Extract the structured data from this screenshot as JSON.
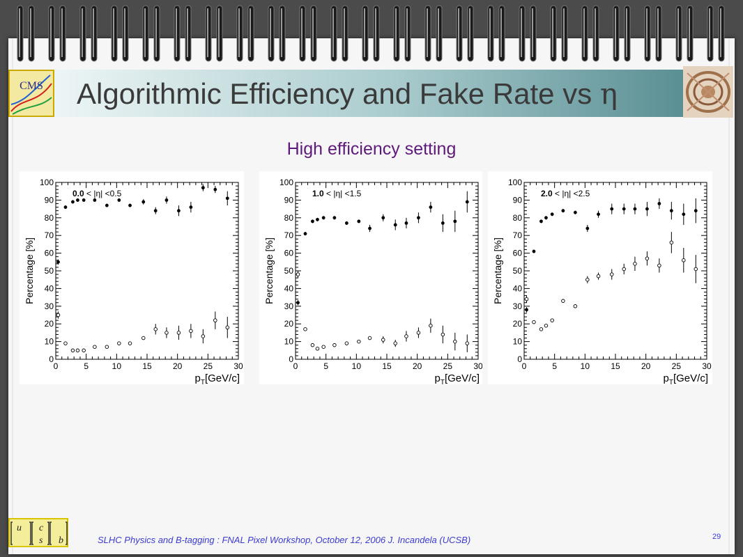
{
  "slide": {
    "title_text": "Algorithmic Efficiency and Fake Rate vs ",
    "title_symbol": "η",
    "subtitle": "High efficiency setting",
    "footer": "SLHC Physics and B-tagging : FNAL Pixel Workshop, October 12, 2006   J. Incandela (UCSB)",
    "page_number": "29",
    "logo_left_text": "CMS",
    "logo_quarks": [
      "u",
      "c",
      "s",
      "b"
    ]
  },
  "chart_data": [
    {
      "type": "scatter",
      "region_label": {
        "lo": "0.0",
        "mid": "< |η| <",
        "hi": "0.5"
      },
      "xlabel_main": "p",
      "xlabel_sub": "T",
      "xlabel_rest": "[GeV/c]",
      "ylabel": "Percentage [%]",
      "xlim": [
        0,
        30
      ],
      "ylim": [
        0,
        100
      ],
      "x_ticks": [
        "0",
        "5",
        "10",
        "15",
        "20",
        "25",
        "30"
      ],
      "y_ticks": [
        "0",
        "10",
        "20",
        "30",
        "40",
        "50",
        "60",
        "70",
        "80",
        "90",
        "100"
      ],
      "series": [
        {
          "marker": "filled",
          "points": [
            [
              0.4,
              55,
              1.5
            ],
            [
              1.6,
              86,
              1
            ],
            [
              2.8,
              89,
              1
            ],
            [
              3.6,
              90,
              1
            ],
            [
              4.6,
              90,
              1
            ],
            [
              6.4,
              90,
              1
            ],
            [
              8.4,
              87,
              1
            ],
            [
              10.4,
              90,
              1
            ],
            [
              12.2,
              87,
              1
            ],
            [
              14.4,
              89,
              1.5
            ],
            [
              16.4,
              84,
              2
            ],
            [
              18.2,
              90,
              2
            ],
            [
              20.2,
              84,
              3
            ],
            [
              22.2,
              86,
              3
            ],
            [
              24.2,
              97,
              2
            ],
            [
              26.2,
              96,
              2
            ],
            [
              28.2,
              91,
              4
            ]
          ]
        },
        {
          "marker": "open",
          "points": [
            [
              0.4,
              25,
              2
            ],
            [
              1.6,
              9,
              1
            ],
            [
              2.8,
              5,
              1
            ],
            [
              3.6,
              5,
              1
            ],
            [
              4.6,
              5,
              1
            ],
            [
              6.4,
              7,
              1
            ],
            [
              8.4,
              7,
              1
            ],
            [
              10.4,
              9,
              1
            ],
            [
              12.2,
              9,
              1
            ],
            [
              14.4,
              12,
              1
            ],
            [
              16.4,
              17,
              3
            ],
            [
              18.2,
              15,
              3
            ],
            [
              20.2,
              15,
              4
            ],
            [
              22.2,
              16,
              4
            ],
            [
              24.2,
              13,
              4
            ],
            [
              26.2,
              22,
              5
            ],
            [
              28.2,
              18,
              6
            ]
          ]
        }
      ]
    },
    {
      "type": "scatter",
      "region_label": {
        "lo": "1.0",
        "mid": "< |η| <",
        "hi": "1.5"
      },
      "xlabel_main": "p",
      "xlabel_sub": "T",
      "xlabel_rest": "[GeV/c]",
      "ylabel": "Percentage [%]",
      "xlim": [
        0,
        30
      ],
      "ylim": [
        0,
        100
      ],
      "x_ticks": [
        "0",
        "5",
        "10",
        "15",
        "20",
        "25",
        "30"
      ],
      "y_ticks": [
        "0",
        "10",
        "20",
        "30",
        "40",
        "50",
        "60",
        "70",
        "80",
        "90",
        "100"
      ],
      "series": [
        {
          "marker": "filled",
          "points": [
            [
              0.4,
              32,
              1.5
            ],
            [
              1.6,
              71,
              1
            ],
            [
              2.8,
              78,
              1
            ],
            [
              3.6,
              79,
              1
            ],
            [
              4.6,
              80,
              1
            ],
            [
              6.4,
              80,
              1
            ],
            [
              8.4,
              77,
              1
            ],
            [
              10.4,
              78,
              1
            ],
            [
              12.2,
              74,
              2
            ],
            [
              14.4,
              80,
              2
            ],
            [
              16.4,
              76,
              3
            ],
            [
              18.2,
              77,
              3
            ],
            [
              20.2,
              80,
              3
            ],
            [
              22.2,
              86,
              3
            ],
            [
              24.2,
              77,
              5
            ],
            [
              26.2,
              78,
              6
            ],
            [
              28.2,
              89,
              6
            ]
          ]
        },
        {
          "marker": "open",
          "points": [
            [
              0.4,
              48,
              2
            ],
            [
              1.6,
              17,
              1
            ],
            [
              2.8,
              8,
              1
            ],
            [
              3.6,
              6,
              1
            ],
            [
              4.6,
              7,
              1
            ],
            [
              6.4,
              8,
              1
            ],
            [
              8.4,
              9,
              1
            ],
            [
              10.4,
              10,
              1
            ],
            [
              12.2,
              12,
              1
            ],
            [
              14.4,
              11,
              2
            ],
            [
              16.4,
              9,
              2
            ],
            [
              18.2,
              13,
              3
            ],
            [
              20.2,
              15,
              3
            ],
            [
              22.2,
              19,
              4
            ],
            [
              24.2,
              14,
              5
            ],
            [
              26.2,
              10,
              5
            ],
            [
              28.2,
              9,
              5
            ]
          ]
        }
      ]
    },
    {
      "type": "scatter",
      "region_label": {
        "lo": "2.0",
        "mid": "< |η| <",
        "hi": "2.5"
      },
      "xlabel_main": "p",
      "xlabel_sub": "T",
      "xlabel_rest": "[GeV/c]",
      "ylabel": "Percentage [%]",
      "xlim": [
        0,
        30
      ],
      "ylim": [
        0,
        100
      ],
      "x_ticks": [
        "0",
        "5",
        "10",
        "15",
        "20",
        "25",
        "30"
      ],
      "y_ticks": [
        "0",
        "10",
        "20",
        "30",
        "40",
        "50",
        "60",
        "70",
        "80",
        "90",
        "100"
      ],
      "series": [
        {
          "marker": "filled",
          "points": [
            [
              0.4,
              28,
              1.5
            ],
            [
              1.6,
              61,
              1
            ],
            [
              2.8,
              78,
              1
            ],
            [
              3.6,
              80,
              1
            ],
            [
              4.6,
              82,
              1
            ],
            [
              6.4,
              84,
              1
            ],
            [
              8.4,
              83,
              1
            ],
            [
              10.4,
              74,
              2
            ],
            [
              12.2,
              82,
              2
            ],
            [
              14.4,
              85,
              3
            ],
            [
              16.4,
              85,
              3
            ],
            [
              18.2,
              85,
              3
            ],
            [
              20.2,
              85,
              4
            ],
            [
              22.2,
              88,
              3
            ],
            [
              24.2,
              84,
              5
            ],
            [
              26.2,
              82,
              6
            ],
            [
              28.2,
              84,
              7
            ]
          ]
        },
        {
          "marker": "open",
          "points": [
            [
              0.4,
              34,
              2
            ],
            [
              1.6,
              21,
              1
            ],
            [
              2.8,
              17,
              1
            ],
            [
              3.6,
              19,
              1
            ],
            [
              4.6,
              22,
              1
            ],
            [
              6.4,
              33,
              1
            ],
            [
              8.4,
              30,
              1
            ],
            [
              10.4,
              45,
              2
            ],
            [
              12.2,
              47,
              2
            ],
            [
              14.4,
              48,
              3
            ],
            [
              16.4,
              51,
              3
            ],
            [
              18.2,
              54,
              4
            ],
            [
              20.2,
              57,
              4
            ],
            [
              22.2,
              53,
              4
            ],
            [
              24.2,
              66,
              6
            ],
            [
              26.2,
              56,
              7
            ],
            [
              28.2,
              51,
              8
            ]
          ]
        }
      ]
    }
  ]
}
